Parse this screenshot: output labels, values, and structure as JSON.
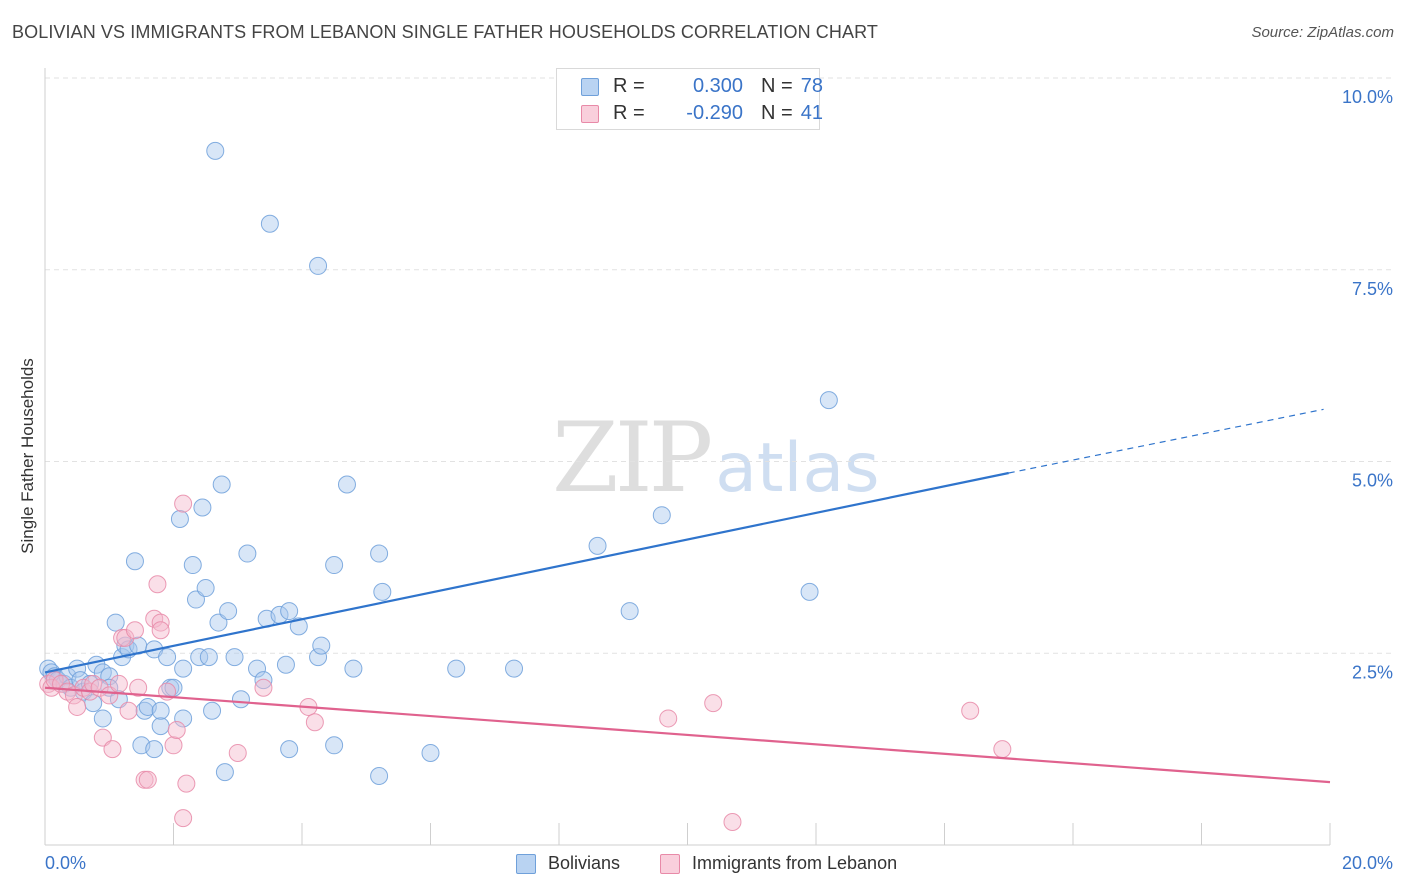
{
  "title": "BOLIVIAN VS IMMIGRANTS FROM LEBANON SINGLE FATHER HOUSEHOLDS CORRELATION CHART",
  "source": "Source: ZipAtlas.com",
  "watermark": {
    "zip": "ZIP",
    "atlas": "atlas"
  },
  "colors": {
    "blue_fill": "#a8c8ee",
    "blue_stroke": "#6fa0da",
    "blue_line": "#2f74cc",
    "pink_fill": "#f5b8cc",
    "pink_stroke": "#e88aa8",
    "pink_line": "#e0628e",
    "value_text": "#3a74c8",
    "grid": "#e2e2e2",
    "axis": "#cfcfcf"
  },
  "legend": {
    "rows": [
      {
        "r_label": "R =",
        "r_value": "0.300",
        "n_label": "N =",
        "n_value": "78"
      },
      {
        "r_label": "R =",
        "r_value": "-0.290",
        "n_label": "N =",
        "n_value": "41"
      }
    ]
  },
  "chart_data": {
    "type": "scatter",
    "ylabel": "Single Father Households",
    "xlim": [
      0,
      20
    ],
    "ylim": [
      0,
      10
    ],
    "x_tick_labels": [
      "0.0%",
      "20.0%"
    ],
    "y_ticks": [
      2.5,
      5.0,
      7.5,
      10.0
    ],
    "y_tick_labels": [
      "2.5%",
      "5.0%",
      "7.5%",
      "10.0%"
    ],
    "grid": true,
    "legend_position": "top-center",
    "series": [
      {
        "name": "Bolivians",
        "color": "#a8c8ee",
        "trend": {
          "x": [
            0,
            15
          ],
          "y": [
            2.25,
            4.85
          ],
          "dashed_to_x": 19.9,
          "dashed_to_y": 5.68
        },
        "points": [
          [
            0.05,
            2.3
          ],
          [
            0.1,
            2.25
          ],
          [
            0.15,
            2.2
          ],
          [
            0.2,
            2.15
          ],
          [
            0.3,
            2.1
          ],
          [
            0.35,
            2.2
          ],
          [
            0.4,
            2.05
          ],
          [
            0.5,
            2.3
          ],
          [
            0.55,
            2.15
          ],
          [
            0.6,
            2.0
          ],
          [
            0.7,
            2.1
          ],
          [
            0.75,
            1.85
          ],
          [
            0.8,
            2.35
          ],
          [
            0.9,
            2.25
          ],
          [
            0.9,
            1.65
          ],
          [
            1.0,
            2.2
          ],
          [
            1.0,
            2.05
          ],
          [
            1.1,
            2.9
          ],
          [
            1.15,
            1.9
          ],
          [
            1.2,
            2.45
          ],
          [
            1.25,
            2.6
          ],
          [
            1.3,
            2.55
          ],
          [
            1.4,
            3.7
          ],
          [
            1.45,
            2.6
          ],
          [
            1.5,
            1.3
          ],
          [
            1.55,
            1.75
          ],
          [
            1.6,
            1.8
          ],
          [
            1.7,
            2.55
          ],
          [
            1.7,
            1.25
          ],
          [
            1.8,
            1.55
          ],
          [
            1.8,
            1.75
          ],
          [
            1.9,
            2.45
          ],
          [
            1.95,
            2.05
          ],
          [
            2.0,
            2.05
          ],
          [
            2.1,
            4.25
          ],
          [
            2.15,
            1.65
          ],
          [
            2.15,
            2.3
          ],
          [
            2.3,
            3.65
          ],
          [
            2.35,
            3.2
          ],
          [
            2.4,
            2.45
          ],
          [
            2.45,
            4.4
          ],
          [
            2.5,
            3.35
          ],
          [
            2.55,
            2.45
          ],
          [
            2.6,
            1.75
          ],
          [
            2.7,
            2.9
          ],
          [
            2.75,
            4.7
          ],
          [
            2.8,
            0.95
          ],
          [
            2.85,
            3.05
          ],
          [
            2.95,
            2.45
          ],
          [
            3.05,
            1.9
          ],
          [
            3.15,
            3.8
          ],
          [
            3.3,
            2.3
          ],
          [
            3.4,
            2.15
          ],
          [
            3.45,
            2.95
          ],
          [
            3.5,
            8.1
          ],
          [
            3.65,
            3.0
          ],
          [
            3.75,
            2.35
          ],
          [
            3.8,
            3.05
          ],
          [
            3.8,
            1.25
          ],
          [
            3.95,
            2.85
          ],
          [
            4.25,
            7.55
          ],
          [
            4.25,
            2.45
          ],
          [
            4.3,
            2.6
          ],
          [
            4.5,
            1.3
          ],
          [
            4.5,
            3.65
          ],
          [
            4.7,
            4.7
          ],
          [
            4.8,
            2.3
          ],
          [
            5.2,
            3.8
          ],
          [
            5.25,
            3.3
          ],
          [
            5.2,
            0.9
          ],
          [
            6.0,
            1.2
          ],
          [
            6.4,
            2.3
          ],
          [
            7.3,
            2.3
          ],
          [
            8.6,
            3.9
          ],
          [
            9.1,
            3.05
          ],
          [
            9.6,
            4.3
          ],
          [
            11.9,
            3.3
          ],
          [
            12.2,
            5.8
          ],
          [
            2.65,
            9.05
          ]
        ]
      },
      {
        "name": "Immigrants from Lebanon",
        "color": "#f5b8cc",
        "trend": {
          "x": [
            0,
            20
          ],
          "y": [
            2.05,
            0.82
          ]
        },
        "points": [
          [
            0.05,
            2.1
          ],
          [
            0.1,
            2.05
          ],
          [
            0.15,
            2.15
          ],
          [
            0.25,
            2.1
          ],
          [
            0.35,
            2.0
          ],
          [
            0.45,
            1.95
          ],
          [
            0.5,
            1.8
          ],
          [
            0.6,
            2.05
          ],
          [
            0.7,
            2.0
          ],
          [
            0.75,
            2.1
          ],
          [
            0.85,
            2.05
          ],
          [
            0.9,
            1.4
          ],
          [
            1.0,
            1.95
          ],
          [
            1.05,
            1.25
          ],
          [
            1.15,
            2.1
          ],
          [
            1.2,
            2.7
          ],
          [
            1.25,
            2.7
          ],
          [
            1.3,
            1.75
          ],
          [
            1.4,
            2.8
          ],
          [
            1.45,
            2.05
          ],
          [
            1.55,
            0.85
          ],
          [
            1.6,
            0.85
          ],
          [
            1.7,
            2.95
          ],
          [
            1.75,
            3.4
          ],
          [
            1.8,
            2.9
          ],
          [
            1.8,
            2.8
          ],
          [
            1.9,
            2.0
          ],
          [
            2.0,
            1.3
          ],
          [
            2.05,
            1.5
          ],
          [
            2.15,
            0.35
          ],
          [
            2.15,
            4.45
          ],
          [
            2.2,
            0.8
          ],
          [
            3.0,
            1.2
          ],
          [
            3.4,
            2.05
          ],
          [
            4.1,
            1.8
          ],
          [
            4.2,
            1.6
          ],
          [
            9.7,
            1.65
          ],
          [
            10.4,
            1.85
          ],
          [
            10.7,
            0.3
          ],
          [
            14.4,
            1.75
          ],
          [
            14.9,
            1.25
          ]
        ]
      }
    ]
  },
  "bottom_legend": [
    {
      "label": "Bolivians"
    },
    {
      "label": "Immigrants from Lebanon"
    }
  ]
}
